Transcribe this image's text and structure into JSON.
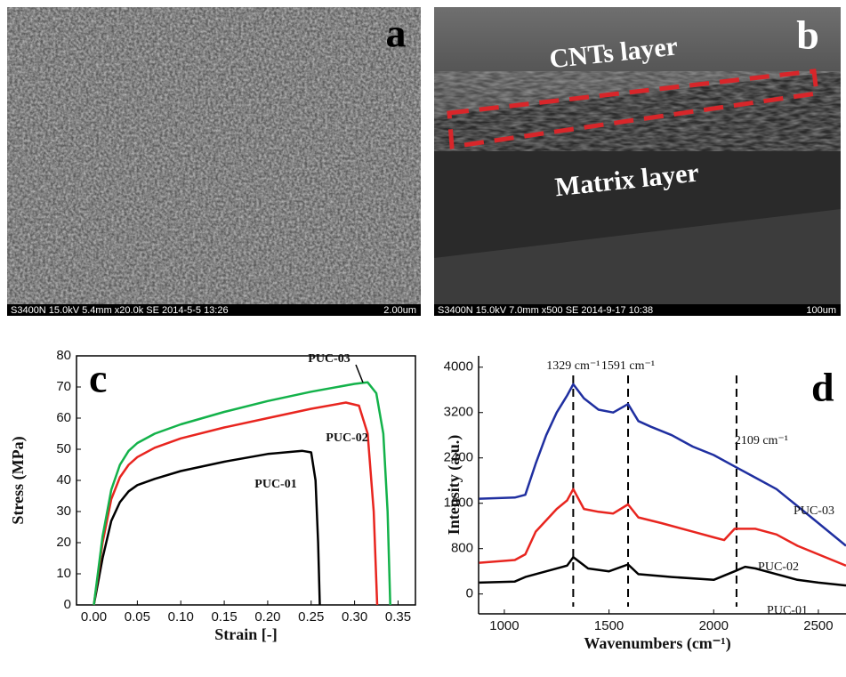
{
  "images": [
    {
      "label": "a",
      "info": "S3400N 15.0kV 5.4mm x20.0k SE  2014-5-5 13:26",
      "scale": "2.00um"
    },
    {
      "label": "b",
      "info": "S3400N 15.0kV 7.0mm x500 SE  2014-9-17 10:38",
      "scale": "100um",
      "annotations": [
        "CNTs layer",
        "Matrix layer"
      ]
    }
  ],
  "chart_data": [
    {
      "type": "line",
      "label": "c",
      "x_label": "Strain [-]",
      "y_label": "Stress (MPa)",
      "xlim": [
        -0.02,
        0.37
      ],
      "ylim": [
        0,
        80
      ],
      "xticks": [
        {
          "value": 0,
          "label": "0.00"
        },
        0.05,
        {
          "value": 0.1,
          "label": "0.10"
        },
        0.15,
        {
          "value": 0.2,
          "label": "0.20"
        },
        0.25,
        {
          "value": 0.3,
          "label": "0.30"
        },
        0.35
      ],
      "yticks": [
        0,
        10,
        20,
        30,
        40,
        50,
        60,
        70,
        80
      ],
      "series": [
        {
          "name": "PUC-01",
          "color": "#000000",
          "x": [
            0,
            0.01,
            0.02,
            0.03,
            0.04,
            0.05,
            0.07,
            0.1,
            0.15,
            0.2,
            0.24,
            0.25,
            0.255,
            0.258,
            0.26
          ],
          "values": [
            0,
            15,
            27,
            33,
            36.5,
            38.5,
            40.5,
            43,
            46,
            48.5,
            49.5,
            49,
            40,
            20,
            0
          ]
        },
        {
          "name": "PUC-02",
          "color": "#e8251f",
          "x": [
            0,
            0.01,
            0.02,
            0.03,
            0.04,
            0.05,
            0.07,
            0.1,
            0.15,
            0.2,
            0.25,
            0.29,
            0.305,
            0.315,
            0.322,
            0.326
          ],
          "values": [
            0,
            20,
            34,
            41,
            45,
            47.5,
            50.5,
            53.5,
            57,
            60,
            63,
            65,
            64,
            55,
            30,
            0
          ]
        },
        {
          "name": "PUC-03",
          "color": "#13b24a",
          "x": [
            0,
            0.01,
            0.02,
            0.03,
            0.04,
            0.05,
            0.07,
            0.1,
            0.15,
            0.2,
            0.25,
            0.3,
            0.315,
            0.325,
            0.333,
            0.338,
            0.341
          ],
          "values": [
            0,
            22,
            37,
            45,
            49.5,
            52,
            55,
            58,
            62,
            65.5,
            68.5,
            71,
            71.5,
            68,
            55,
            30,
            0
          ]
        }
      ]
    },
    {
      "type": "line",
      "label": "d",
      "x_label": "Wavenumbers (cm⁻¹)",
      "y_label": "Intensity (a.u.)",
      "xlim": [
        877,
        2632
      ],
      "ylim": [
        -350,
        4200
      ],
      "xticks": [
        1000,
        1500,
        2000,
        2500
      ],
      "yticks": [
        0,
        800,
        1600,
        2400,
        3200,
        4000
      ],
      "peaks": [
        {
          "value": 1329,
          "label": "1329 cm⁻¹"
        },
        {
          "value": 1591,
          "label": "1591 cm⁻¹"
        },
        {
          "value": 2109,
          "label": "2109 cm⁻¹"
        }
      ],
      "series": [
        {
          "name": "PUC-03",
          "color": "#1f2fa0",
          "x": [
            880,
            1050,
            1100,
            1150,
            1200,
            1250,
            1300,
            1329,
            1380,
            1450,
            1520,
            1591,
            1640,
            1700,
            1800,
            1900,
            2000,
            2100,
            2200,
            2300,
            2400,
            2500,
            2632
          ],
          "values": [
            1680,
            1700,
            1750,
            2300,
            2800,
            3200,
            3500,
            3700,
            3450,
            3250,
            3200,
            3350,
            3050,
            2950,
            2800,
            2600,
            2450,
            2250,
            2050,
            1850,
            1550,
            1250,
            850
          ]
        },
        {
          "name": "PUC-02",
          "color": "#e8251f",
          "x": [
            880,
            1050,
            1100,
            1150,
            1250,
            1300,
            1329,
            1380,
            1450,
            1520,
            1591,
            1640,
            1750,
            1900,
            2000,
            2050,
            2100,
            2200,
            2300,
            2400,
            2500,
            2632
          ],
          "values": [
            550,
            600,
            700,
            1100,
            1500,
            1650,
            1850,
            1500,
            1450,
            1420,
            1580,
            1350,
            1250,
            1100,
            1000,
            950,
            1150,
            1150,
            1050,
            850,
            700,
            500
          ]
        },
        {
          "name": "PUC-01",
          "color": "#000000",
          "x": [
            880,
            1050,
            1100,
            1200,
            1300,
            1329,
            1400,
            1500,
            1591,
            1640,
            1800,
            2000,
            2100,
            2150,
            2200,
            2300,
            2400,
            2500,
            2632
          ],
          "values": [
            200,
            220,
            300,
            400,
            500,
            650,
            450,
            400,
            520,
            350,
            300,
            250,
            400,
            480,
            450,
            350,
            250,
            200,
            150
          ]
        }
      ]
    }
  ]
}
